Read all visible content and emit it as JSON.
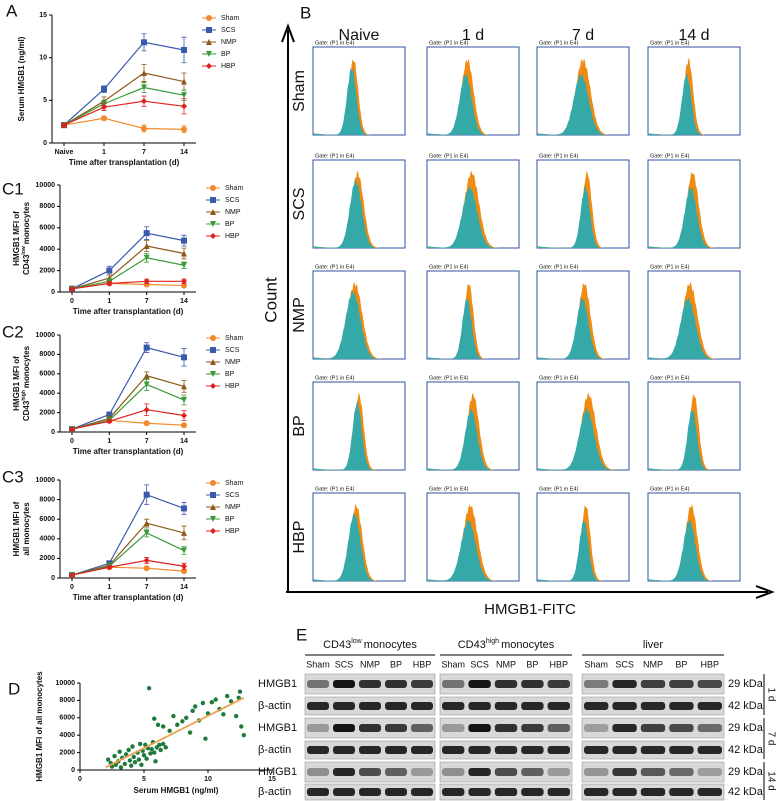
{
  "panel_labels": [
    "A",
    "B",
    "C1",
    "C2",
    "C3",
    "D",
    "E"
  ],
  "chart_data": [
    {
      "type": "line",
      "xlabel": "Time after transplantation (d)",
      "ylabel": [
        "Serum HMGB1 (ng/ml)"
      ],
      "categories": [
        "Naive",
        "1",
        "7",
        "14"
      ],
      "ylim": [
        0,
        15
      ],
      "yticks": [
        0,
        5,
        10,
        15
      ],
      "series": [
        {
          "name": "Sham",
          "color": "#f08a2c",
          "values": [
            2.1,
            2.9,
            1.7,
            1.6
          ],
          "errors": [
            0.2,
            0.2,
            0.4,
            0.4
          ]
        },
        {
          "name": "SCS",
          "color": "#3a5bab",
          "values": [
            2.1,
            6.3,
            11.8,
            10.9
          ],
          "errors": [
            0.2,
            0.4,
            1.0,
            1.5
          ]
        },
        {
          "name": "NMP",
          "color": "#8b5a1b",
          "values": [
            2.1,
            4.9,
            8.2,
            7.2
          ],
          "errors": [
            0.2,
            0.5,
            1.0,
            1.0
          ]
        },
        {
          "name": "BP",
          "color": "#3a9a3a",
          "values": [
            2.1,
            4.6,
            6.5,
            5.6
          ],
          "errors": [
            0.2,
            0.4,
            0.6,
            0.6
          ]
        },
        {
          "name": "HBP",
          "color": "#e02020",
          "values": [
            2.1,
            4.2,
            4.9,
            4.3
          ],
          "errors": [
            0.2,
            0.4,
            0.6,
            0.9
          ]
        }
      ]
    },
    {
      "type": "line",
      "xlabel": "Time after transplantation (d)",
      "ylabel": [
        "HMGB1 MFI of",
        "CD43",
        "low",
        "monocytes"
      ],
      "categories": [
        "0",
        "1",
        "7",
        "14"
      ],
      "ylim": [
        0,
        10000
      ],
      "yticks": [
        0,
        2000,
        4000,
        6000,
        8000,
        10000
      ],
      "series": [
        {
          "name": "Sham",
          "color": "#f08a2c",
          "values": [
            300,
            800,
            700,
            600
          ],
          "errors": [
            50,
            100,
            100,
            100
          ]
        },
        {
          "name": "SCS",
          "color": "#3a5bab",
          "values": [
            300,
            2000,
            5500,
            4800
          ],
          "errors": [
            50,
            400,
            600,
            500
          ]
        },
        {
          "name": "NMP",
          "color": "#8b5a1b",
          "values": [
            300,
            1300,
            4300,
            3600
          ],
          "errors": [
            50,
            300,
            500,
            500
          ]
        },
        {
          "name": "BP",
          "color": "#3a9a3a",
          "values": [
            300,
            1000,
            3200,
            2500
          ],
          "errors": [
            50,
            200,
            400,
            300
          ]
        },
        {
          "name": "HBP",
          "color": "#e02020",
          "values": [
            300,
            800,
            1000,
            1000
          ],
          "errors": [
            50,
            150,
            200,
            200
          ]
        }
      ]
    },
    {
      "type": "line",
      "xlabel": "Time after transplantation (d)",
      "ylabel": [
        "HMGB1 MFI of",
        "CD43",
        "high",
        "monocytes"
      ],
      "categories": [
        "0",
        "1",
        "7",
        "14"
      ],
      "ylim": [
        0,
        10000
      ],
      "yticks": [
        0,
        2000,
        4000,
        6000,
        8000,
        10000
      ],
      "series": [
        {
          "name": "Sham",
          "color": "#f08a2c",
          "values": [
            300,
            1200,
            900,
            700
          ],
          "errors": [
            50,
            150,
            150,
            100
          ]
        },
        {
          "name": "SCS",
          "color": "#3a5bab",
          "values": [
            300,
            1800,
            8700,
            7700
          ],
          "errors": [
            50,
            200,
            500,
            900
          ]
        },
        {
          "name": "NMP",
          "color": "#8b5a1b",
          "values": [
            300,
            1400,
            5800,
            4700
          ],
          "errors": [
            50,
            200,
            400,
            600
          ]
        },
        {
          "name": "BP",
          "color": "#3a9a3a",
          "values": [
            300,
            1200,
            4900,
            3300
          ],
          "errors": [
            50,
            150,
            600,
            500
          ]
        },
        {
          "name": "HBP",
          "color": "#e02020",
          "values": [
            300,
            1100,
            2300,
            1700
          ],
          "errors": [
            50,
            150,
            600,
            500
          ]
        }
      ]
    },
    {
      "type": "line",
      "xlabel": "Time after transplantation (d)",
      "ylabel": [
        "HMGB1 MFI of",
        "all monocytes"
      ],
      "categories": [
        "0",
        "1",
        "7",
        "14"
      ],
      "ylim": [
        0,
        10000
      ],
      "yticks": [
        0,
        2000,
        4000,
        6000,
        8000,
        10000
      ],
      "series": [
        {
          "name": "Sham",
          "color": "#f08a2c",
          "values": [
            300,
            1100,
            1000,
            700
          ],
          "errors": [
            50,
            150,
            150,
            100
          ]
        },
        {
          "name": "SCS",
          "color": "#3a5bab",
          "values": [
            300,
            1500,
            8500,
            7100
          ],
          "errors": [
            50,
            200,
            1000,
            600
          ]
        },
        {
          "name": "NMP",
          "color": "#8b5a1b",
          "values": [
            300,
            1300,
            5600,
            4600
          ],
          "errors": [
            50,
            150,
            400,
            700
          ]
        },
        {
          "name": "BP",
          "color": "#3a9a3a",
          "values": [
            300,
            1200,
            4600,
            2800
          ],
          "errors": [
            50,
            150,
            400,
            400
          ]
        },
        {
          "name": "HBP",
          "color": "#e02020",
          "values": [
            300,
            1100,
            1800,
            1200
          ],
          "errors": [
            50,
            150,
            300,
            300
          ]
        }
      ]
    },
    {
      "type": "scatter",
      "xlabel": "Serum HMGB1 (ng/ml)",
      "ylabel": [
        "HMGB1 MFI of all monocytes"
      ],
      "xlim": [
        0,
        15
      ],
      "xticks": [
        0,
        5,
        10,
        15
      ],
      "ylim": [
        0,
        10000
      ],
      "yticks": [
        0,
        2000,
        4000,
        6000,
        8000,
        10000
      ],
      "color": "#1e7a3c",
      "fit_color": "#f0a050",
      "fit_line": {
        "x": [
          2,
          12.8
        ],
        "y": [
          300,
          8300
        ]
      },
      "x": [
        2.2,
        2.4,
        2.5,
        2.7,
        2.8,
        3.0,
        3.1,
        3.2,
        3.3,
        3.5,
        3.6,
        3.8,
        3.9,
        4.0,
        4.1,
        4.2,
        4.3,
        4.5,
        4.6,
        4.7,
        4.8,
        4.9,
        5.0,
        5.1,
        5.2,
        5.3,
        5.5,
        5.6,
        5.7,
        5.8,
        5.9,
        6.0,
        6.2,
        6.3,
        6.5,
        6.7,
        5.4,
        5.8,
        6.1,
        6.5,
        7.0,
        7.6,
        8.0,
        8.3,
        8.6,
        8.8,
        9.0,
        9.3,
        9.6,
        10.0,
        10.3,
        10.6,
        10.9,
        11.2,
        11.5,
        11.8,
        12.2,
        12.5,
        12.6,
        12.8,
        12.4,
        7.3,
        9.8
      ],
      "y": [
        1200,
        800,
        400,
        1600,
        600,
        1000,
        2100,
        300,
        1400,
        700,
        1800,
        2300,
        1100,
        500,
        2700,
        1500,
        900,
        2000,
        1200,
        3000,
        600,
        2200,
        1700,
        2900,
        1300,
        2500,
        1900,
        2400,
        3200,
        2000,
        1000,
        2600,
        2900,
        2300,
        3000,
        2600,
        9400,
        5900,
        5200,
        5000,
        4500,
        5200,
        5600,
        6000,
        4300,
        6800,
        7300,
        5700,
        7700,
        6500,
        7800,
        8100,
        7000,
        6400,
        8500,
        7900,
        6200,
        9000,
        5000,
        4000,
        8300,
        6200,
        3600
      ]
    }
  ],
  "flow": {
    "columns": [
      "Naive",
      "1 d",
      "7 d",
      "14 d"
    ],
    "rows": [
      "Sham",
      "SCS",
      "NMP",
      "BP",
      "HBP"
    ],
    "gate": "Gate: (P1 in E4)",
    "ylabel": "Count",
    "xlabel": "HMGB1-FITC"
  },
  "blot": {
    "groups": [
      [
        "CD43",
        "low",
        "monocytes"
      ],
      [
        "CD43",
        "high",
        "monocytes"
      ],
      [
        "liver"
      ]
    ],
    "lanes": [
      "Sham",
      "SCS",
      "NMP",
      "BP",
      "HBP"
    ],
    "rows": [
      "HMGB1",
      "β-actin",
      "HMGB1",
      "β-actin",
      "HMGB1",
      "β-actin"
    ],
    "sizes": [
      "29 kDa",
      "42 kDa",
      "29 kDa",
      "42 kDa",
      "29 kDa",
      "42 kDa"
    ],
    "times": [
      "1 d",
      "7 d",
      "14 d"
    ]
  }
}
